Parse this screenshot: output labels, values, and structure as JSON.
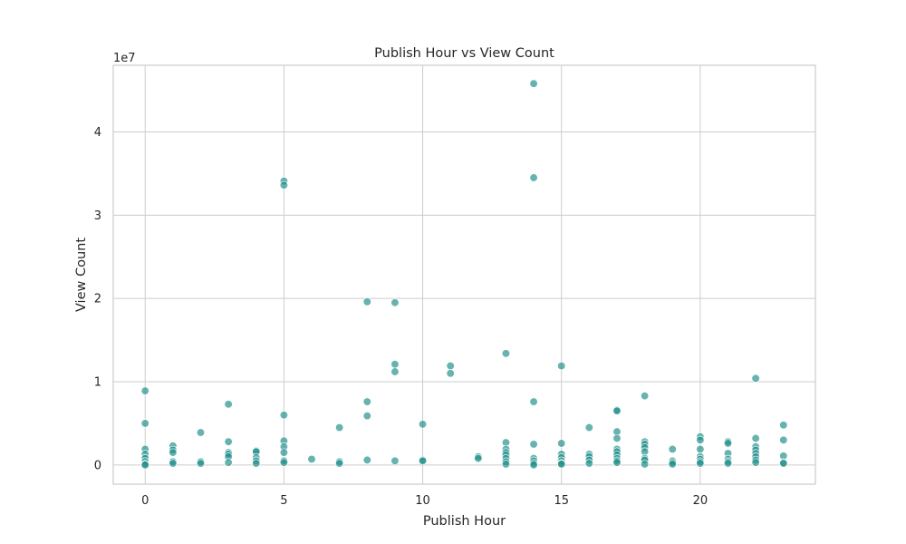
{
  "chart_data": {
    "type": "scatter",
    "title": "Publish Hour vs View Count",
    "xlabel": "Publish Hour",
    "ylabel": "View Count",
    "y_offset_label": "1e7",
    "xlim": [
      -1.15,
      24.15
    ],
    "ylim": [
      -2300000,
      48000000
    ],
    "xticks": [
      0,
      5,
      10,
      15,
      20
    ],
    "yticks": [
      0,
      10000000,
      20000000,
      30000000,
      40000000
    ],
    "ytick_labels": [
      "0",
      "1",
      "2",
      "3",
      "4"
    ],
    "grid": true,
    "point_color": "#1f8f8a",
    "points": [
      {
        "x": 0,
        "y": 8900000
      },
      {
        "x": 0,
        "y": 5000000
      },
      {
        "x": 0,
        "y": 1900000
      },
      {
        "x": 0,
        "y": 1300000
      },
      {
        "x": 0,
        "y": 800000
      },
      {
        "x": 0,
        "y": 400000
      },
      {
        "x": 0,
        "y": 100000
      },
      {
        "x": 0,
        "y": 0
      },
      {
        "x": 1,
        "y": 2300000
      },
      {
        "x": 1,
        "y": 1800000
      },
      {
        "x": 1,
        "y": 1500000
      },
      {
        "x": 1,
        "y": 400000
      },
      {
        "x": 1,
        "y": 200000
      },
      {
        "x": 2,
        "y": 3900000
      },
      {
        "x": 2,
        "y": 400000
      },
      {
        "x": 2,
        "y": 200000
      },
      {
        "x": 3,
        "y": 7300000
      },
      {
        "x": 3,
        "y": 2800000
      },
      {
        "x": 3,
        "y": 1500000
      },
      {
        "x": 3,
        "y": 1300000
      },
      {
        "x": 3,
        "y": 1000000
      },
      {
        "x": 3,
        "y": 300000
      },
      {
        "x": 4,
        "y": 1700000
      },
      {
        "x": 4,
        "y": 1600000
      },
      {
        "x": 4,
        "y": 900000
      },
      {
        "x": 4,
        "y": 500000
      },
      {
        "x": 4,
        "y": 200000
      },
      {
        "x": 5,
        "y": 34100000
      },
      {
        "x": 5,
        "y": 33600000
      },
      {
        "x": 5,
        "y": 6000000
      },
      {
        "x": 5,
        "y": 2900000
      },
      {
        "x": 5,
        "y": 2200000
      },
      {
        "x": 5,
        "y": 1500000
      },
      {
        "x": 5,
        "y": 500000
      },
      {
        "x": 5,
        "y": 300000
      },
      {
        "x": 6,
        "y": 700000
      },
      {
        "x": 7,
        "y": 4500000
      },
      {
        "x": 7,
        "y": 400000
      },
      {
        "x": 7,
        "y": 200000
      },
      {
        "x": 8,
        "y": 19600000
      },
      {
        "x": 8,
        "y": 7600000
      },
      {
        "x": 8,
        "y": 5900000
      },
      {
        "x": 8,
        "y": 600000
      },
      {
        "x": 9,
        "y": 19500000
      },
      {
        "x": 9,
        "y": 12100000
      },
      {
        "x": 9,
        "y": 11200000
      },
      {
        "x": 9,
        "y": 500000
      },
      {
        "x": 10,
        "y": 4900000
      },
      {
        "x": 10,
        "y": 600000
      },
      {
        "x": 10,
        "y": 500000
      },
      {
        "x": 11,
        "y": 11900000
      },
      {
        "x": 11,
        "y": 11000000
      },
      {
        "x": 12,
        "y": 1000000
      },
      {
        "x": 12,
        "y": 800000
      },
      {
        "x": 13,
        "y": 13400000
      },
      {
        "x": 13,
        "y": 2700000
      },
      {
        "x": 13,
        "y": 1900000
      },
      {
        "x": 13,
        "y": 1500000
      },
      {
        "x": 13,
        "y": 1200000
      },
      {
        "x": 13,
        "y": 800000
      },
      {
        "x": 13,
        "y": 400000
      },
      {
        "x": 13,
        "y": 100000
      },
      {
        "x": 14,
        "y": 45800000
      },
      {
        "x": 14,
        "y": 34500000
      },
      {
        "x": 14,
        "y": 7600000
      },
      {
        "x": 14,
        "y": 2500000
      },
      {
        "x": 14,
        "y": 800000
      },
      {
        "x": 14,
        "y": 500000
      },
      {
        "x": 14,
        "y": 200000
      },
      {
        "x": 14,
        "y": 0
      },
      {
        "x": 15,
        "y": 11900000
      },
      {
        "x": 15,
        "y": 2600000
      },
      {
        "x": 15,
        "y": 1300000
      },
      {
        "x": 15,
        "y": 900000
      },
      {
        "x": 15,
        "y": 500000
      },
      {
        "x": 15,
        "y": 200000
      },
      {
        "x": 15,
        "y": 100000
      },
      {
        "x": 16,
        "y": 4500000
      },
      {
        "x": 16,
        "y": 1300000
      },
      {
        "x": 16,
        "y": 1000000
      },
      {
        "x": 16,
        "y": 600000
      },
      {
        "x": 16,
        "y": 200000
      },
      {
        "x": 17,
        "y": 6600000
      },
      {
        "x": 17,
        "y": 6500000
      },
      {
        "x": 17,
        "y": 4000000
      },
      {
        "x": 17,
        "y": 3200000
      },
      {
        "x": 17,
        "y": 1900000
      },
      {
        "x": 17,
        "y": 1600000
      },
      {
        "x": 17,
        "y": 1200000
      },
      {
        "x": 17,
        "y": 800000
      },
      {
        "x": 17,
        "y": 500000
      },
      {
        "x": 17,
        "y": 300000
      },
      {
        "x": 18,
        "y": 8300000
      },
      {
        "x": 18,
        "y": 2800000
      },
      {
        "x": 18,
        "y": 2500000
      },
      {
        "x": 18,
        "y": 2100000
      },
      {
        "x": 18,
        "y": 1600000
      },
      {
        "x": 18,
        "y": 800000
      },
      {
        "x": 18,
        "y": 600000
      },
      {
        "x": 18,
        "y": 100000
      },
      {
        "x": 19,
        "y": 1900000
      },
      {
        "x": 19,
        "y": 500000
      },
      {
        "x": 19,
        "y": 300000
      },
      {
        "x": 19,
        "y": 100000
      },
      {
        "x": 20,
        "y": 3400000
      },
      {
        "x": 20,
        "y": 3000000
      },
      {
        "x": 20,
        "y": 1900000
      },
      {
        "x": 20,
        "y": 1000000
      },
      {
        "x": 20,
        "y": 700000
      },
      {
        "x": 20,
        "y": 400000
      },
      {
        "x": 20,
        "y": 200000
      },
      {
        "x": 21,
        "y": 2800000
      },
      {
        "x": 21,
        "y": 2600000
      },
      {
        "x": 21,
        "y": 1400000
      },
      {
        "x": 21,
        "y": 700000
      },
      {
        "x": 21,
        "y": 400000
      },
      {
        "x": 21,
        "y": 200000
      },
      {
        "x": 22,
        "y": 10400000
      },
      {
        "x": 22,
        "y": 3200000
      },
      {
        "x": 22,
        "y": 2200000
      },
      {
        "x": 22,
        "y": 1800000
      },
      {
        "x": 22,
        "y": 1400000
      },
      {
        "x": 22,
        "y": 1000000
      },
      {
        "x": 22,
        "y": 600000
      },
      {
        "x": 22,
        "y": 300000
      },
      {
        "x": 23,
        "y": 4800000
      },
      {
        "x": 23,
        "y": 3000000
      },
      {
        "x": 23,
        "y": 1100000
      },
      {
        "x": 23,
        "y": 300000
      },
      {
        "x": 23,
        "y": 200000
      }
    ]
  }
}
